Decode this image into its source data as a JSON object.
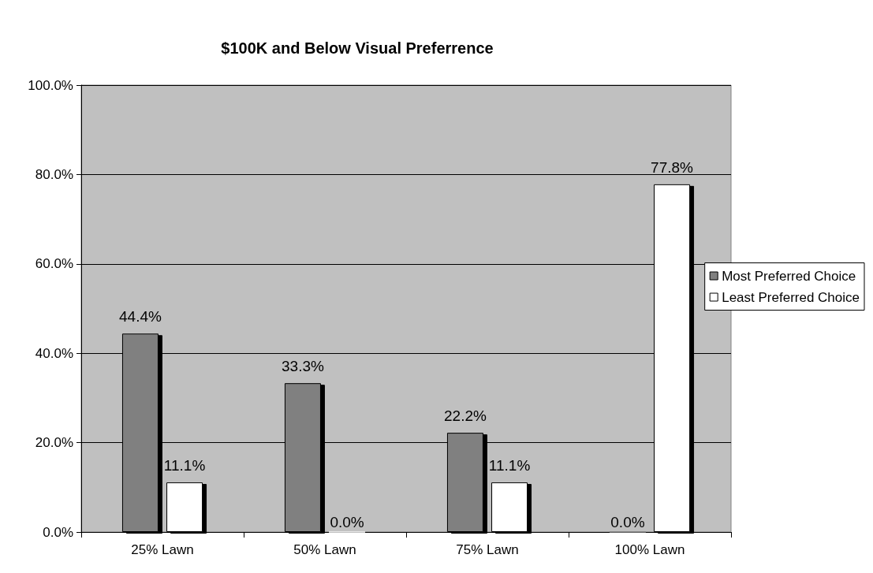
{
  "chart_data": {
    "type": "bar",
    "title": "$100K and Below Visual Preferrence",
    "categories": [
      "25% Lawn",
      "50% Lawn",
      "75% Lawn",
      "100% Lawn"
    ],
    "series": [
      {
        "name": "Most Preferred Choice",
        "color": "#808080",
        "values": [
          44.4,
          33.3,
          22.2,
          0.0
        ],
        "value_labels": [
          "44.4%",
          "33.3%",
          "22.2%",
          "0.0%"
        ]
      },
      {
        "name": "Least Preferred Choice",
        "color": "#ffffff",
        "values": [
          11.1,
          0.0,
          11.1,
          77.8
        ],
        "value_labels": [
          "11.1%",
          "0.0%",
          "11.1%",
          "77.8%"
        ]
      }
    ],
    "ylim": [
      0,
      100
    ],
    "yticks": [
      {
        "value": 0,
        "label": "0.0%"
      },
      {
        "value": 20,
        "label": "20.0%"
      },
      {
        "value": 40,
        "label": "40.0%"
      },
      {
        "value": 60,
        "label": "60.0%"
      },
      {
        "value": 80,
        "label": "80.0%"
      },
      {
        "value": 100,
        "label": "100.0%"
      }
    ],
    "grid": "y",
    "legend": "right"
  }
}
